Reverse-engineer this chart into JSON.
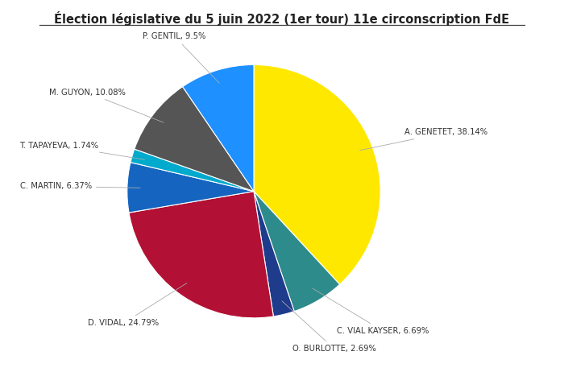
{
  "title": "Élection législative du 5 juin 2022 (1er tour) 11e circonscription FdE",
  "candidates": [
    "A. GENETET",
    "C. VIAL KAYSER",
    "O. BURLOTTE",
    "D. VIDAL",
    "C. MARTIN",
    "T. TAPAYEVA",
    "M. GUYON",
    "P. GENTIL"
  ],
  "values": [
    38.14,
    6.69,
    2.69,
    24.79,
    6.37,
    1.74,
    10.08,
    9.5
  ],
  "colors": [
    "#FFE800",
    "#2E8B8B",
    "#1F3B8C",
    "#B21034",
    "#1565C0",
    "#00AACC",
    "#555555",
    "#1E90FF"
  ],
  "startangle": 90,
  "background_color": "#FFFFFF"
}
